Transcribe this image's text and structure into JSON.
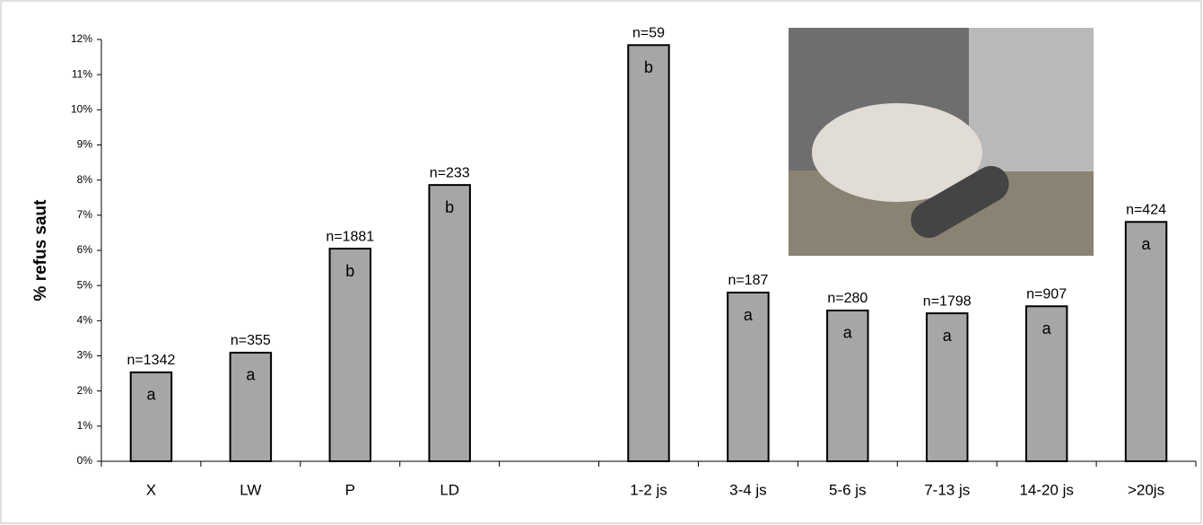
{
  "chart_data": {
    "type": "bar",
    "y_label": "% refus saut",
    "categories": [
      "X",
      "LW",
      "P",
      "LD",
      null,
      "1-2 js",
      "3-4 js",
      "5-6 js",
      "7-13 js",
      "14-20 js",
      ">20js"
    ],
    "values": [
      2.53,
      3.09,
      6.05,
      7.86,
      null,
      11.84,
      4.8,
      4.29,
      4.21,
      4.41,
      6.81
    ],
    "sample_sizes": [
      "n=1342",
      "n=355",
      "n=1881",
      "n=233",
      null,
      "n=59",
      "n=187",
      "n=280",
      "n=1798",
      "n=907",
      "n=424"
    ],
    "groups": [
      "a",
      "a",
      "b",
      "b",
      null,
      "b",
      "a",
      "a",
      "a",
      "a",
      "a"
    ],
    "color": "#a6a6a6",
    "ylim": [
      0,
      12
    ],
    "yticks": [
      {
        "value": 0,
        "label": "0%"
      },
      {
        "value": 1,
        "label": "1%"
      },
      {
        "value": 2,
        "label": "2%"
      },
      {
        "value": 3,
        "label": "3%"
      },
      {
        "value": 4,
        "label": "4%"
      },
      {
        "value": 5,
        "label": "5%"
      },
      {
        "value": 6,
        "label": "6%"
      },
      {
        "value": 7,
        "label": "7%"
      },
      {
        "value": 8,
        "label": "8%"
      },
      {
        "value": 9,
        "label": "9%"
      },
      {
        "value": 10,
        "label": "10%"
      },
      {
        "value": 11,
        "label": "11%"
      },
      {
        "value": 12,
        "label": "12%"
      }
    ]
  }
}
